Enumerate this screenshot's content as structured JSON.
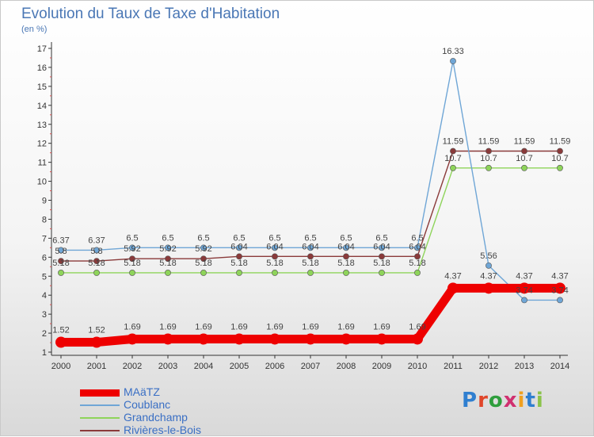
{
  "title": "Evolution du Taux de Taxe d'Habitation",
  "unit_label": "(en %)",
  "brand": "Proxiti",
  "chart_data": {
    "type": "line",
    "x": [
      "2000",
      "2001",
      "2002",
      "2003",
      "2004",
      "2005",
      "2006",
      "2007",
      "2008",
      "2009",
      "2010",
      "2011",
      "2012",
      "2013",
      "2014"
    ],
    "ylim": [
      1,
      17
    ],
    "yticks": [
      "1",
      "2",
      "3",
      "4",
      "5",
      "6",
      "7",
      "8",
      "9",
      "10",
      "11",
      "12",
      "13",
      "14",
      "15",
      "16",
      "17"
    ],
    "grid": false,
    "legend_position": "bottom-left",
    "series": [
      {
        "name": "MAäTZ",
        "color": "#ee0000",
        "values": [
          1.52,
          1.52,
          1.69,
          1.69,
          1.69,
          1.69,
          1.69,
          1.69,
          1.69,
          1.69,
          1.69,
          4.37,
          4.37,
          4.37,
          4.37
        ],
        "labels": [
          "1.52",
          "1.52",
          "1.69",
          "1.69",
          "1.69",
          "1.69",
          "1.69",
          "1.69",
          "1.69",
          "1.69",
          "1.69",
          "4.37",
          "4.37",
          "4.37",
          "4.37"
        ]
      },
      {
        "name": "Coublanc",
        "color": "#6fa6d6",
        "values": [
          6.37,
          6.37,
          6.5,
          6.5,
          6.5,
          6.5,
          6.5,
          6.5,
          6.5,
          6.5,
          6.5,
          16.33,
          5.56,
          3.74,
          3.74
        ],
        "labels": [
          "6.37",
          "6.37",
          "6.5",
          "6.5",
          "6.5",
          "6.5",
          "6.5",
          "6.5",
          "6.5",
          "6.5",
          "6.5",
          "16.33",
          "5.56",
          "3.74",
          "3.74"
        ]
      },
      {
        "name": "Grandchamp",
        "color": "#8ed45a",
        "values": [
          5.18,
          5.18,
          5.18,
          5.18,
          5.18,
          5.18,
          5.18,
          5.18,
          5.18,
          5.18,
          5.18,
          10.7,
          10.7,
          10.7,
          10.7
        ],
        "labels": [
          "5.18",
          "5.18",
          "5.18",
          "5.18",
          "5.18",
          "5.18",
          "5.18",
          "5.18",
          "5.18",
          "5.18",
          "5.18",
          "10.7",
          "10.7",
          "10.7",
          "10.7"
        ]
      },
      {
        "name": "Rivières-le-Bois",
        "color": "#8a3a3a",
        "values": [
          5.8,
          5.8,
          5.92,
          5.92,
          5.92,
          6.04,
          6.04,
          6.04,
          6.04,
          6.04,
          6.04,
          11.59,
          11.59,
          11.59,
          11.59
        ],
        "labels": [
          "5.8",
          "5.8",
          "5.92",
          "5.92",
          "5.92",
          "6.04",
          "6.04",
          "6.04",
          "6.04",
          "6.04",
          "6.04",
          "11.59",
          "11.59",
          "11.59",
          "11.59"
        ]
      }
    ]
  }
}
